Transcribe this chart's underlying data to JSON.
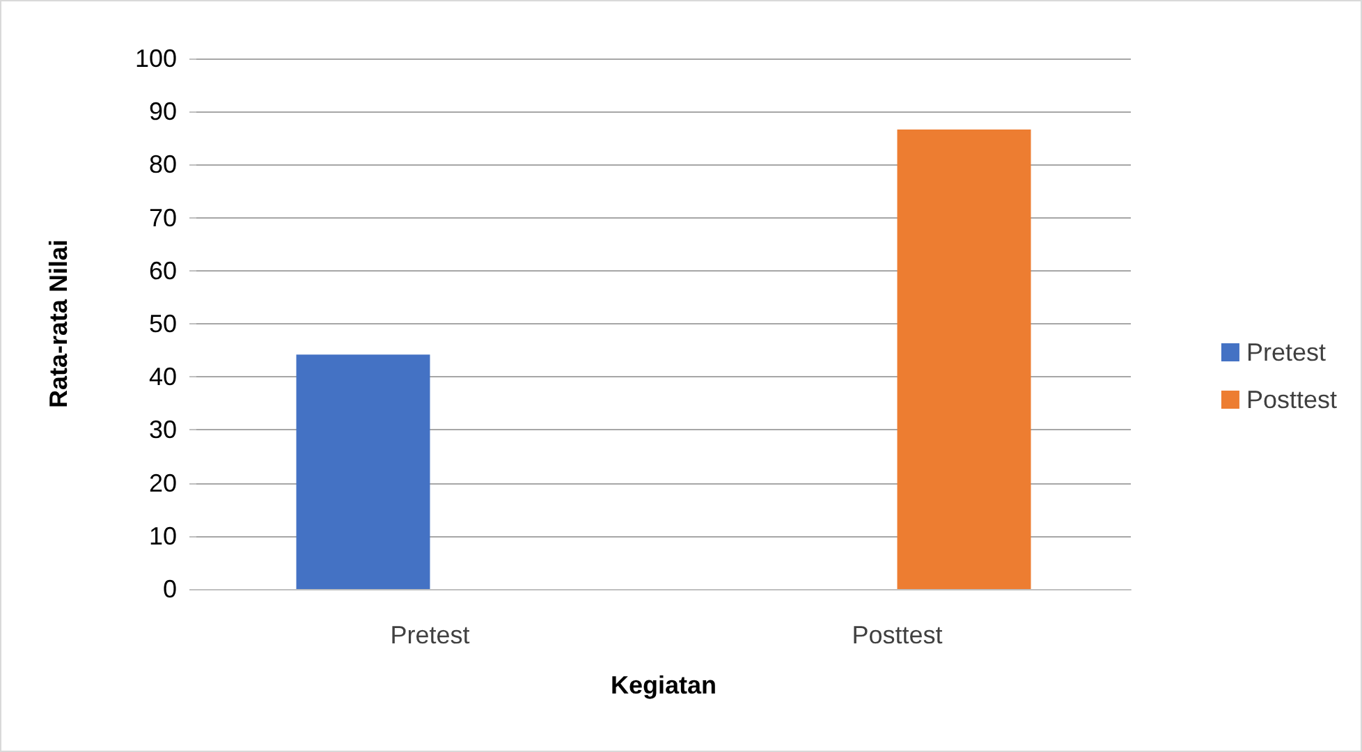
{
  "chart_data": {
    "type": "bar",
    "xlabel": "Kegiatan",
    "ylabel": "Rata-rata Nilai",
    "categories": [
      "Pretest",
      "Posttest"
    ],
    "series": [
      {
        "name": "Pretest",
        "color": "#4472c4",
        "values": [
          44.2,
          null
        ]
      },
      {
        "name": "Posttest",
        "color": "#ed7d31",
        "values": [
          null,
          86.6
        ]
      }
    ],
    "ylim": [
      0,
      100
    ],
    "yticks": [
      0,
      10,
      20,
      30,
      40,
      50,
      60,
      70,
      80,
      90,
      100
    ],
    "grid": "y",
    "legend": "right"
  }
}
